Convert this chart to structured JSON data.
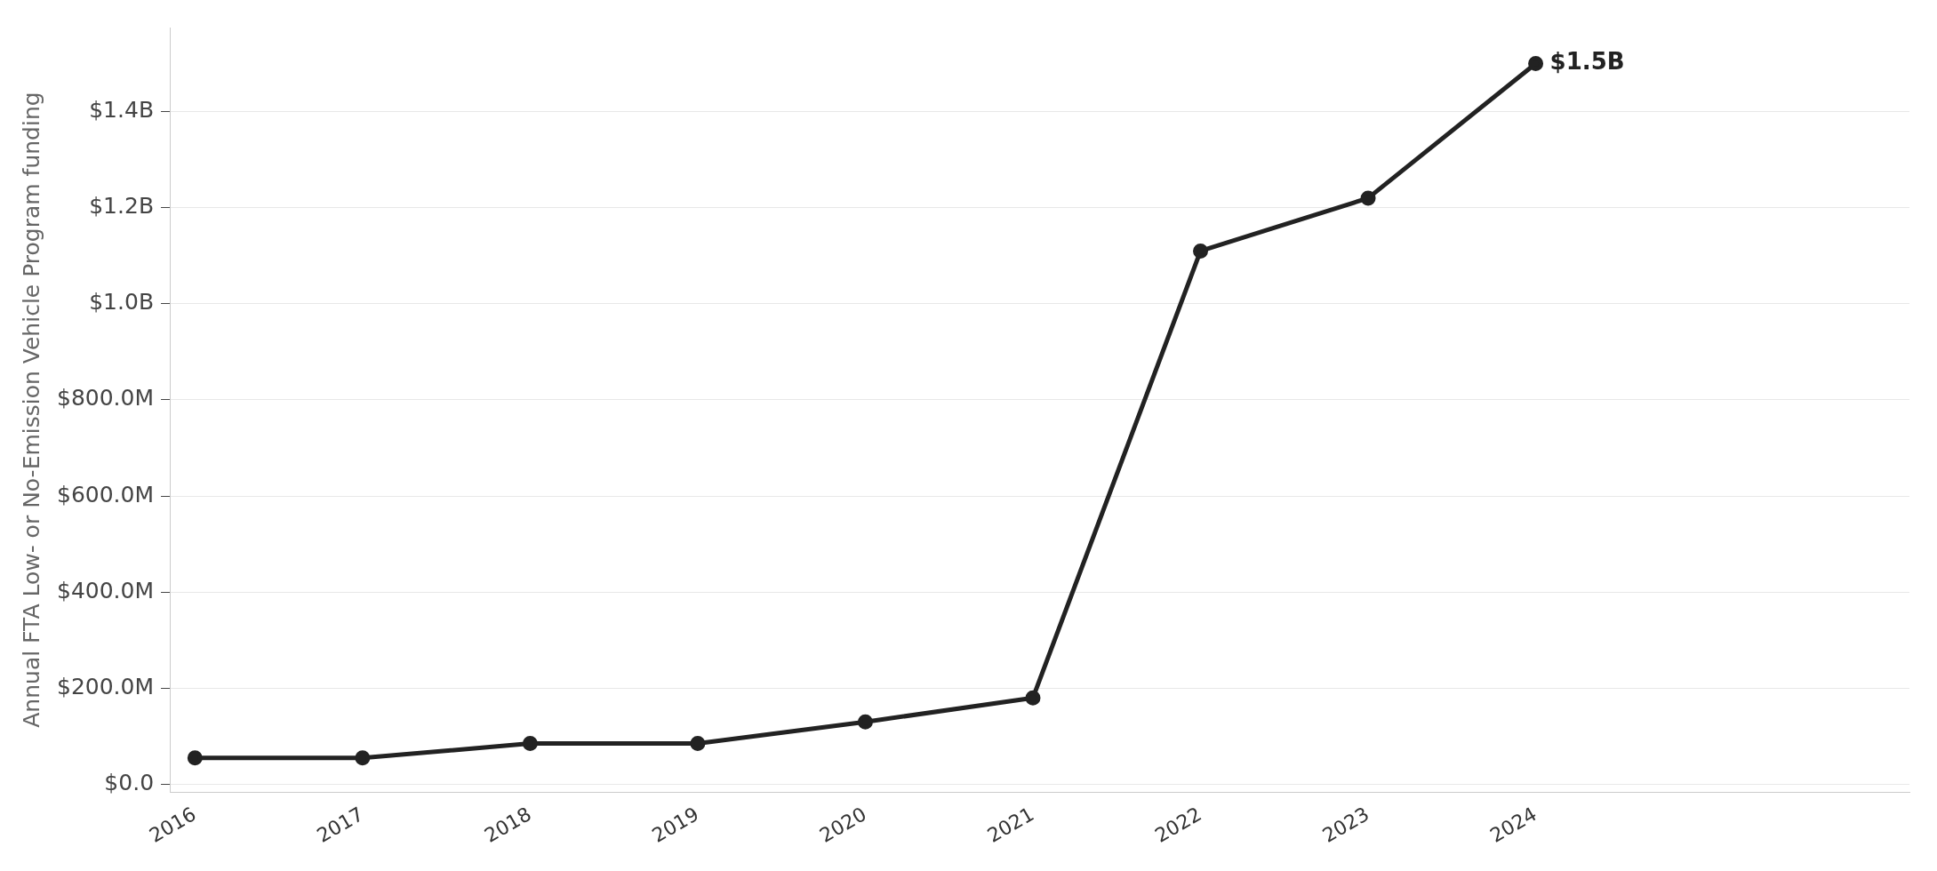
{
  "chart_data": {
    "type": "line",
    "ylabel": "Annual FTA Low- or No-Emission Vehicle Program funding",
    "x": [
      2016,
      2017,
      2018,
      2019,
      2020,
      2021,
      2022,
      2023,
      2024
    ],
    "series": [
      {
        "color": "#222222",
        "values": [
          55000000,
          55000000,
          85000000,
          85000000,
          130000000,
          180000000,
          1110000000,
          1220000000,
          1500000000
        ]
      }
    ],
    "xlim": [
      2015.85,
      2026.23
    ],
    "xticks": [
      2016,
      2017,
      2018,
      2019,
      2020,
      2021,
      2022,
      2023,
      2024
    ],
    "ylim": [
      -16000000,
      1575000000
    ],
    "yticks": [
      {
        "value": 0,
        "label": "$0.0"
      },
      {
        "value": 200000000,
        "label": "$200.0M"
      },
      {
        "value": 400000000,
        "label": "$400.0M"
      },
      {
        "value": 600000000,
        "label": "$600.0M"
      },
      {
        "value": 800000000,
        "label": "$800.0M"
      },
      {
        "value": 1000000000,
        "label": "$1.0B"
      },
      {
        "value": 1200000000,
        "label": "$1.2B"
      },
      {
        "value": 1400000000,
        "label": "$1.4B"
      }
    ],
    "annotations": [
      {
        "text": "$1.5B",
        "x": 2024,
        "y": 1500000000
      }
    ],
    "grid": "y",
    "marker": "circle",
    "line_style": "solid",
    "legend": false
  }
}
